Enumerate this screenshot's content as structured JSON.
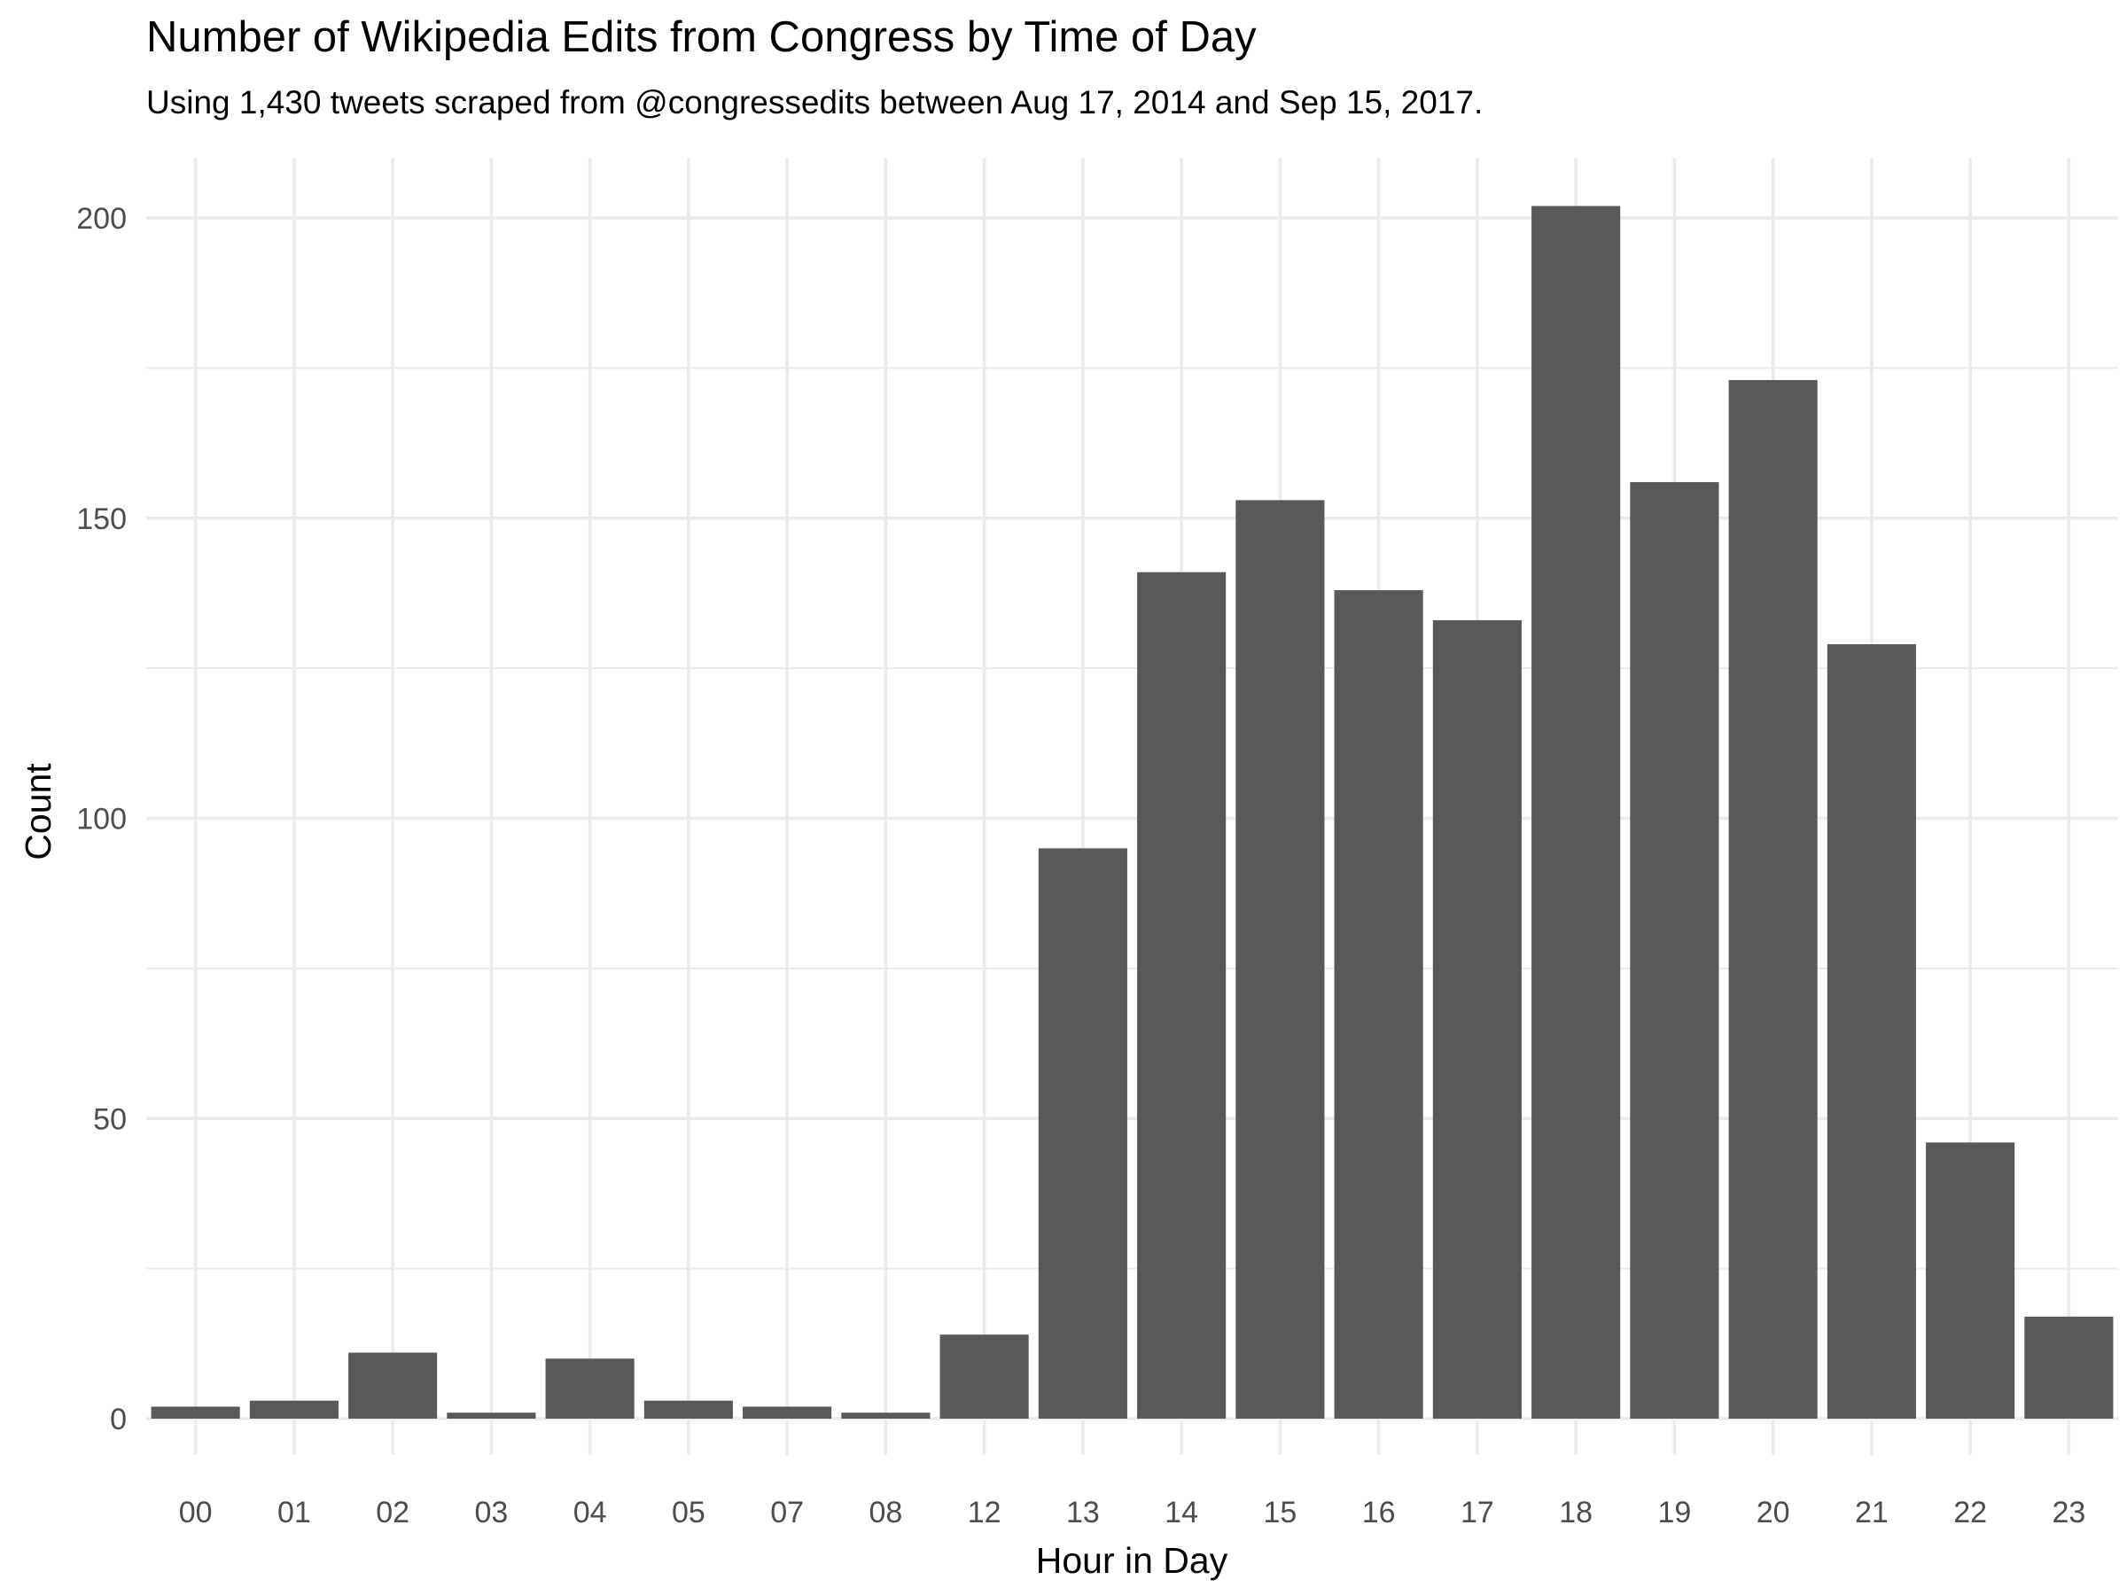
{
  "chart_data": {
    "type": "bar",
    "title": "Number of Wikipedia Edits from Congress by Time of Day",
    "subtitle": "Using 1,430 tweets scraped from @congressedits between Aug 17, 2014 and Sep 15, 2017.",
    "xlabel": "Hour in Day",
    "ylabel": "Count",
    "categories": [
      "00",
      "01",
      "02",
      "03",
      "04",
      "05",
      "07",
      "08",
      "12",
      "13",
      "14",
      "15",
      "16",
      "17",
      "18",
      "19",
      "20",
      "21",
      "22",
      "23"
    ],
    "values": [
      2,
      3,
      11,
      1,
      10,
      3,
      2,
      1,
      14,
      95,
      141,
      153,
      138,
      133,
      202,
      156,
      173,
      129,
      46,
      17
    ],
    "ylim": [
      0,
      210
    ],
    "yticks": [
      0,
      50,
      100,
      150,
      200
    ],
    "grid": true,
    "legend": "none",
    "colors": {
      "bar": "#595959",
      "grid": "#ebebeb",
      "background": "#ffffff"
    }
  }
}
